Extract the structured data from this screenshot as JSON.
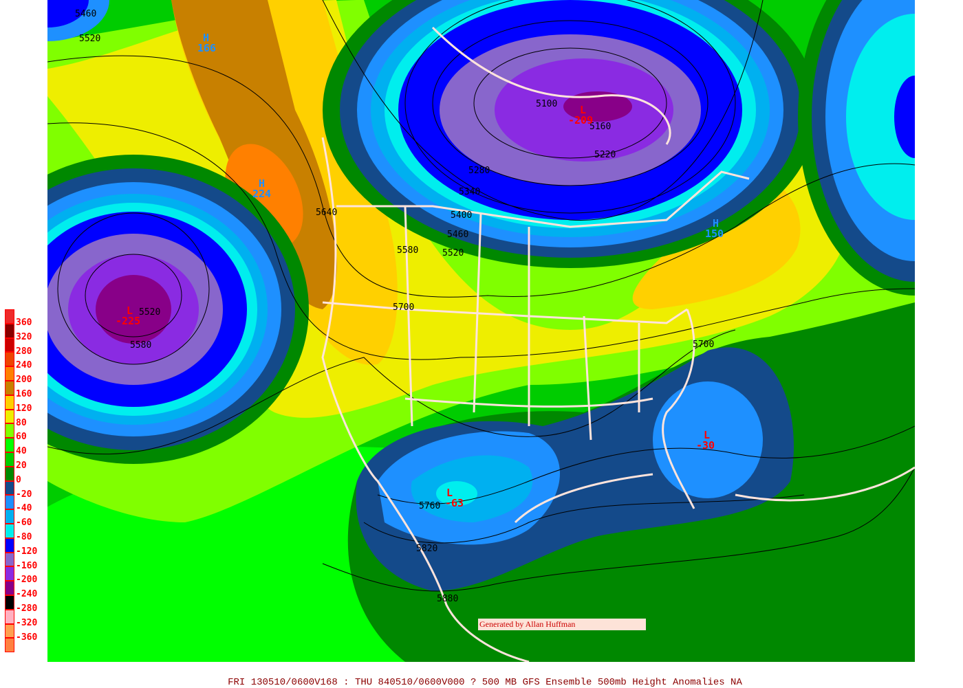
{
  "legend": {
    "items": [
      {
        "label": "360",
        "color": "#ee2a2a"
      },
      {
        "label": "320",
        "color": "#880000"
      },
      {
        "label": "280",
        "color": "#cc0000"
      },
      {
        "label": "240",
        "color": "#ee4400"
      },
      {
        "label": "200",
        "color": "#ff8000"
      },
      {
        "label": "160",
        "color": "#c88000"
      },
      {
        "label": "120",
        "color": "#ffd000"
      },
      {
        "label": "80",
        "color": "#eeee00"
      },
      {
        "label": "60",
        "color": "#80ff00"
      },
      {
        "label": "40",
        "color": "#00ff00"
      },
      {
        "label": "20",
        "color": "#00cc00"
      },
      {
        "label": "0",
        "color": "#008800"
      },
      {
        "label": "-20",
        "color": "#144a8a"
      },
      {
        "label": "-40",
        "color": "#1e90ff"
      },
      {
        "label": "-60",
        "color": "#00b0f0"
      },
      {
        "label": "-80",
        "color": "#00eeee"
      },
      {
        "label": "-120",
        "color": "#0000ff"
      },
      {
        "label": "-160",
        "color": "#8866cc"
      },
      {
        "label": "-200",
        "color": "#8a2be2"
      },
      {
        "label": "-240",
        "color": "#880088"
      },
      {
        "label": "-280",
        "color": "#000000"
      },
      {
        "label": "-320",
        "color": "#ffb0c0"
      },
      {
        "label": "-360",
        "color": "#ffa050"
      },
      {
        "label": "",
        "color": "#ff8040"
      }
    ]
  },
  "contour_labels": [
    "5460",
    "5520",
    "5640",
    "5580",
    "5520",
    "5460",
    "5400",
    "5340",
    "5280",
    "5220",
    "5160",
    "5100",
    "5700",
    "5520",
    "5580",
    "5700",
    "5760",
    "5820",
    "5880"
  ],
  "centers": [
    {
      "type": "H",
      "value": "166",
      "color": "#1e90ff"
    },
    {
      "type": "H",
      "value": "224",
      "color": "#1e90ff"
    },
    {
      "type": "L",
      "value": "-225",
      "color": "#ff0000"
    },
    {
      "type": "L",
      "value": "-209",
      "color": "#ff0000"
    },
    {
      "type": "H",
      "value": "150",
      "color": "#1e90ff"
    },
    {
      "type": "L",
      "value": "-30",
      "color": "#ff0000"
    },
    {
      "type": "L",
      "value": "-63",
      "color": "#ff0000"
    }
  ],
  "credit": "Generated by Allan Huffman",
  "footer": "FRI 130510/0600V168 : THU 840510/0600V000  ? 500 MB GFS Ensemble 500mb Height Anomalies NA"
}
